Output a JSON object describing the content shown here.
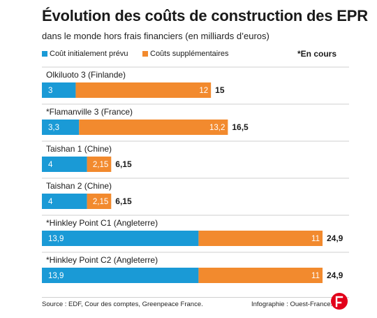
{
  "header": {
    "title": "Évolution des coûts de construction des EPR",
    "subtitle": "dans le monde hors frais financiers (en milliards d’euros)",
    "note": "*En cours"
  },
  "legend": [
    {
      "label": "Coût initialement prévu",
      "color": "#1a9ad6"
    },
    {
      "label": "Coûts supplémentaires",
      "color": "#f28a2e"
    }
  ],
  "colors": {
    "initial": "#1a9ad6",
    "extra": "#f28a2e"
  },
  "chart_data": {
    "type": "bar",
    "orientation": "horizontal",
    "stacked": true,
    "title": "Évolution des coûts de construction des EPR",
    "subtitle": "dans le monde hors frais financiers (en milliards d’euros)",
    "unit": "milliards d’euros",
    "categories": [
      "Olkiluoto 3 (Finlande)",
      "*Flamanville 3 (France)",
      "Taishan 1 (Chine)",
      "Taishan 2 (Chine)",
      "*Hinkley Point C1 (Angleterre)",
      "*Hinkley Point C2 (Angleterre)"
    ],
    "series": [
      {
        "name": "Coût initialement prévu",
        "values": [
          3,
          3.3,
          4,
          4,
          13.9,
          13.9
        ],
        "labels": [
          "3",
          "3,3",
          "4",
          "4",
          "13,9",
          "13,9"
        ]
      },
      {
        "name": "Coûts supplémentaires",
        "values": [
          12,
          13.2,
          2.15,
          2.15,
          11,
          11
        ],
        "labels": [
          "12",
          "13,2",
          "2,15",
          "2,15",
          "11",
          "11"
        ]
      }
    ],
    "totals": [
      15,
      16.5,
      6.15,
      6.15,
      24.9,
      24.9
    ],
    "total_labels": [
      "15",
      "16,5",
      "6,15",
      "6,15",
      "24,9",
      "24,9"
    ],
    "xlim": [
      0,
      24.9
    ],
    "grid": false,
    "legend_position": "top-left"
  },
  "footer": {
    "source": "Source : EDF, Cour des comptes, Greenpeace France.",
    "credit": "Infographie : Ouest-France."
  },
  "logo_icon": "ouest-france-logo"
}
